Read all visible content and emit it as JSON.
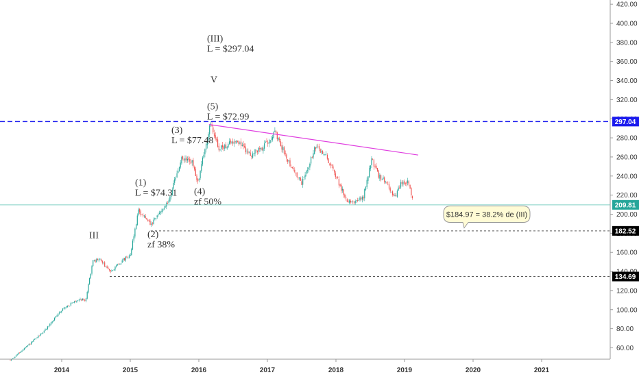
{
  "chart_data": {
    "type": "candlestick",
    "x_axis": {
      "ticks": [
        "2014",
        "2015",
        "2016",
        "2017",
        "2018",
        "2019",
        "2020",
        "2021"
      ]
    },
    "y_axis": {
      "ticks": [
        "420.00",
        "400.00",
        "380.00",
        "360.00",
        "340.00",
        "320.00",
        "300.00",
        "280.00",
        "260.00",
        "240.00",
        "220.00",
        "200.00",
        "180.00",
        "160.00",
        "140.00",
        "120.00",
        "100.00",
        "80.00",
        "60.00"
      ],
      "range": [
        45,
        425
      ]
    },
    "price_series": {
      "up_color": "#26a69a",
      "down_color": "#ef5350",
      "anchors": [
        {
          "date": "2013.25",
          "price": 47
        },
        {
          "date": "2013.50",
          "price": 62
        },
        {
          "date": "2013.75",
          "price": 78
        },
        {
          "date": "2014.00",
          "price": 100
        },
        {
          "date": "2014.25",
          "price": 111
        },
        {
          "date": "2014.35",
          "price": 110
        },
        {
          "date": "2014.45",
          "price": 150
        },
        {
          "date": "2014.55",
          "price": 153
        },
        {
          "date": "2014.70",
          "price": 140
        },
        {
          "date": "2015.00",
          "price": 158
        },
        {
          "date": "2015.12",
          "price": 204
        },
        {
          "date": "2015.22",
          "price": 196
        },
        {
          "date": "2015.30",
          "price": 188
        },
        {
          "date": "2015.45",
          "price": 204
        },
        {
          "date": "2015.55",
          "price": 212
        },
        {
          "date": "2015.75",
          "price": 258
        },
        {
          "date": "2015.90",
          "price": 255
        },
        {
          "date": "2015.98",
          "price": 232
        },
        {
          "date": "2016.10",
          "price": 272
        },
        {
          "date": "2016.17",
          "price": 294
        },
        {
          "date": "2016.30",
          "price": 268
        },
        {
          "date": "2016.55",
          "price": 278
        },
        {
          "date": "2016.75",
          "price": 262
        },
        {
          "date": "2016.95",
          "price": 271
        },
        {
          "date": "2017.10",
          "price": 286
        },
        {
          "date": "2017.35",
          "price": 250
        },
        {
          "date": "2017.50",
          "price": 232
        },
        {
          "date": "2017.70",
          "price": 270
        },
        {
          "date": "2017.85",
          "price": 262
        },
        {
          "date": "2018.00",
          "price": 240
        },
        {
          "date": "2018.15",
          "price": 215
        },
        {
          "date": "2018.30",
          "price": 213
        },
        {
          "date": "2018.40",
          "price": 218
        },
        {
          "date": "2018.52",
          "price": 258
        },
        {
          "date": "2018.62",
          "price": 240
        },
        {
          "date": "2018.75",
          "price": 233
        },
        {
          "date": "2018.85",
          "price": 216
        },
        {
          "date": "2018.95",
          "price": 232
        },
        {
          "date": "2019.05",
          "price": 234
        },
        {
          "date": "2019.13",
          "price": 210
        }
      ]
    },
    "horizontal_levels": [
      {
        "value": 297.04,
        "label": "297.04",
        "style": "dashed",
        "color": "#1a1aee",
        "label_bg": "#1a1aee"
      },
      {
        "value": 209.81,
        "label": "209.81",
        "style": "solid",
        "color": "#7fcfc4",
        "label_bg": "#26a69a"
      },
      {
        "value": 182.52,
        "label": "182.52",
        "style": "dotted",
        "color": "#555555",
        "label_bg": "#000000",
        "from_date": "2015.30"
      },
      {
        "value": 134.69,
        "label": "134.69",
        "style": "dotted",
        "color": "#555555",
        "label_bg": "#000000",
        "from_date": "2014.70"
      }
    ],
    "trendline": {
      "color": "#e040e0",
      "start": {
        "date": "2016.15",
        "price": 294
      },
      "end": {
        "date": "2019.20",
        "price": 262
      }
    },
    "annotations": [
      {
        "lines": [
          "(III)",
          "L = $297.04"
        ],
        "date": "2016.12",
        "price": 381
      },
      {
        "lines": [
          "V"
        ],
        "date": "2016.17",
        "price": 338
      },
      {
        "lines": [
          "(5)",
          "L = $72.99"
        ],
        "date": "2016.12",
        "price": 310
      },
      {
        "lines": [
          "(3)",
          "L = $77.48"
        ],
        "date": "2015.60",
        "price": 285
      },
      {
        "lines": [
          "(1)",
          "L = $74.31"
        ],
        "date": "2015.07",
        "price": 230
      },
      {
        "lines": [
          "(4)",
          "zf 50%"
        ],
        "date": "2015.93",
        "price": 221
      },
      {
        "lines": [
          "(2)",
          "zf 38%"
        ],
        "date": "2015.25",
        "price": 176
      },
      {
        "lines": [
          "III"
        ],
        "date": "2014.40",
        "price": 175
      }
    ],
    "callout": {
      "text": "$184.97 = 38.2% de (III)",
      "date": "2020.20",
      "price": 200
    }
  }
}
